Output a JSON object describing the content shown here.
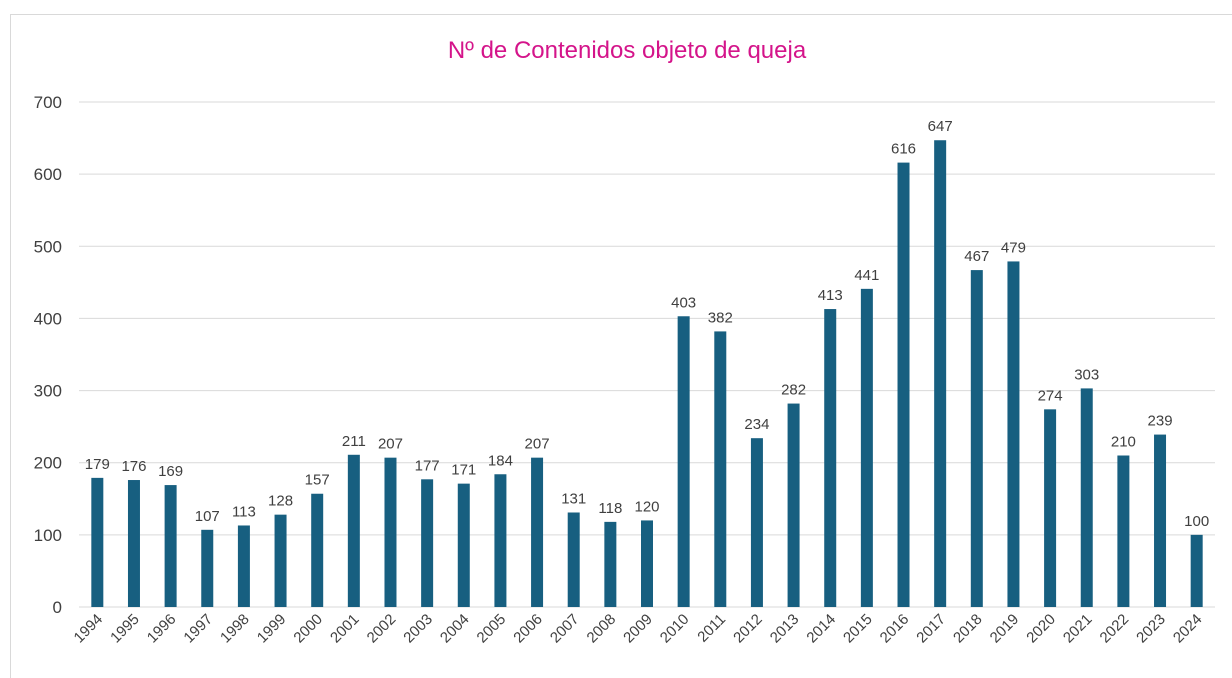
{
  "chart_data": {
    "type": "bar",
    "title": "Nº de Contenidos objeto de queja",
    "categories": [
      "1994",
      "1995",
      "1996",
      "1997",
      "1998",
      "1999",
      "2000",
      "2001",
      "2002",
      "2003",
      "2004",
      "2005",
      "2006",
      "2007",
      "2008",
      "2009",
      "2010",
      "2011",
      "2012",
      "2013",
      "2014",
      "2015",
      "2016",
      "2017",
      "2018",
      "2019",
      "2020",
      "2021",
      "2022",
      "2023",
      "2024"
    ],
    "values": [
      179,
      176,
      169,
      107,
      113,
      128,
      157,
      211,
      207,
      177,
      171,
      184,
      207,
      131,
      118,
      120,
      403,
      382,
      234,
      282,
      413,
      441,
      616,
      647,
      467,
      479,
      274,
      303,
      210,
      239,
      100
    ],
    "color": "#175f80",
    "title_color": "#d4148a",
    "ylim": [
      0,
      700
    ],
    "yticks": [
      0,
      100,
      200,
      300,
      400,
      500,
      600,
      700
    ],
    "grid": true
  }
}
